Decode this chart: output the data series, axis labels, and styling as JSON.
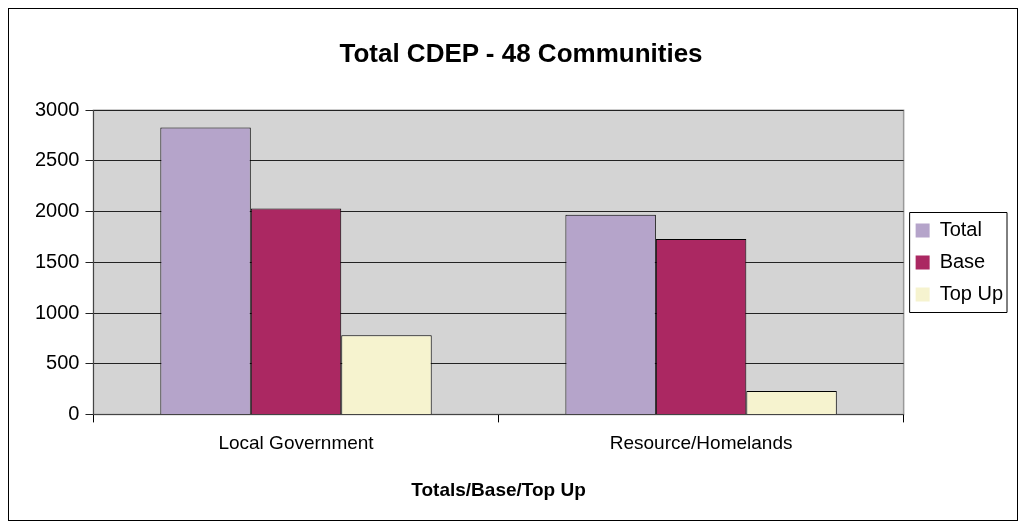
{
  "chart_data": {
    "type": "bar",
    "title": "Total CDEP - 48 Communities",
    "xlabel": "Totals/Base/Top Up",
    "categories": [
      "Local Government",
      "Resource/Homelands"
    ],
    "series": [
      {
        "name": "Total",
        "color": "#b5a4ca",
        "values": [
          2830,
          1970
        ]
      },
      {
        "name": "Base",
        "color": "#ab2862",
        "values": [
          2030,
          1730
        ]
      },
      {
        "name": "Top Up",
        "color": "#f6f3cf",
        "values": [
          780,
          230
        ]
      }
    ],
    "ylim": [
      0,
      3000
    ],
    "yticks": [
      0,
      500,
      1000,
      1500,
      2000,
      2500,
      3000
    ],
    "grid": "y",
    "legend": "right"
  }
}
